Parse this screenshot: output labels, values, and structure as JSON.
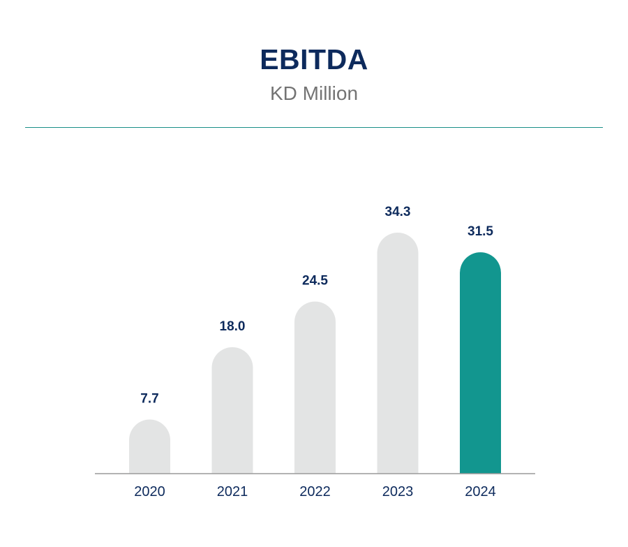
{
  "chart_data": {
    "type": "bar",
    "title": "EBITDA",
    "subtitle": "KD Million",
    "categories": [
      "2020",
      "2021",
      "2022",
      "2023",
      "2024"
    ],
    "values": [
      7.7,
      18.0,
      24.5,
      34.3,
      31.5
    ],
    "value_labels": [
      "7.7",
      "18.0",
      "24.5",
      "34.3",
      "31.5"
    ],
    "xlabel": "",
    "ylabel": "",
    "ylim": [
      0,
      34.3
    ],
    "grid": false,
    "colors": {
      "bar_default": "#e3e4e4",
      "bar_highlight": "#12968f",
      "highlight_category": "2024",
      "text": "#0d2a5c",
      "axis": "#9a9a9a",
      "divider": "#1a8f87"
    }
  }
}
